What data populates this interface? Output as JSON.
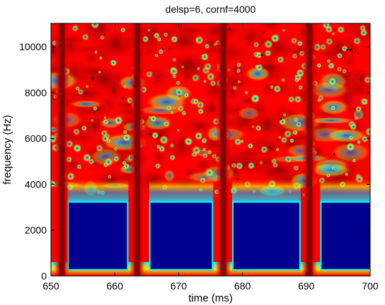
{
  "chart_data": {
    "type": "heatmap",
    "title": "delsp=6, cornf=4000",
    "xlabel": "time (ms)",
    "ylabel": "frequency (Hz)",
    "xlim": [
      650,
      700
    ],
    "ylim": [
      0,
      11025
    ],
    "x_ticks": [
      650,
      660,
      670,
      680,
      690,
      700
    ],
    "x_tick_labels": [
      "650",
      "660",
      "670",
      "680",
      "690",
      "700"
    ],
    "y_ticks": [
      0,
      2000,
      4000,
      6000,
      8000,
      10000
    ],
    "y_tick_labels": [
      "0",
      "2000",
      "4000",
      "6000",
      "8000",
      "10000"
    ],
    "grid": false,
    "colormap": "jet",
    "colormap_colors": [
      "#00008f",
      "#0000ff",
      "#00ffff",
      "#ffff00",
      "#ff0000",
      "#800000"
    ],
    "pulse_center_times_ms": [
      651.7,
      663.5,
      677.0,
      690.5
    ],
    "low_energy_regions": [
      {
        "x": [
          652.8,
          661.9
        ],
        "y": [
          300,
          3200
        ]
      },
      {
        "x": [
          665.6,
          675.2
        ],
        "y": [
          300,
          3200
        ]
      },
      {
        "x": [
          678.6,
          688.9
        ],
        "y": [
          300,
          3200
        ]
      },
      {
        "x": [
          692.4,
          700
        ],
        "y": [
          300,
          3200
        ]
      }
    ],
    "broadband_floor_hz": 300,
    "noise_boundary_hz": 4000
  }
}
